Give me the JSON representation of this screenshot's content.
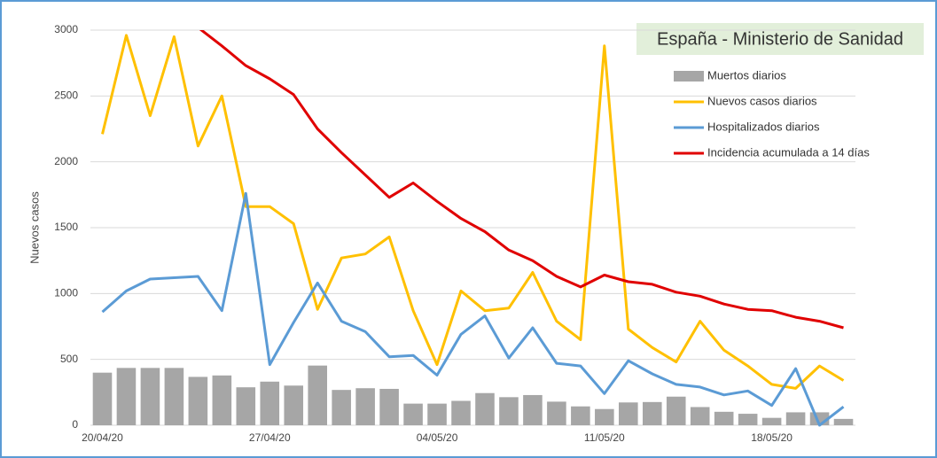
{
  "chart_data": {
    "type": "combo",
    "title": "España - Ministerio de Sanidad",
    "y_label": "Nuevos casos",
    "categories": [
      "20/04/20",
      null,
      null,
      null,
      null,
      null,
      null,
      "27/04/20",
      null,
      null,
      null,
      null,
      null,
      null,
      "04/05/20",
      null,
      null,
      null,
      null,
      null,
      null,
      "11/05/20",
      null,
      null,
      null,
      null,
      null,
      null,
      "18/05/20",
      null,
      null,
      null
    ],
    "ylim": [
      0,
      3000
    ],
    "yticks": [
      0,
      500,
      1000,
      1500,
      2000,
      2500,
      3000
    ],
    "grid": true,
    "legend": "top-right",
    "series": [
      {
        "name": "Muertos diarios",
        "kind": "bar",
        "color": "#a6a6a6",
        "values": [
          399,
          435,
          435,
          435,
          367,
          378,
          288,
          331,
          301,
          453,
          268,
          281,
          276,
          164,
          164,
          185,
          244,
          213,
          229,
          179,
          143,
          123,
          173,
          176,
          217,
          138,
          102,
          87,
          56,
          98,
          98,
          48
        ]
      },
      {
        "name": "Nuevos casos diarios",
        "kind": "line",
        "color": "#ffc000",
        "values": [
          2210,
          2960,
          2350,
          2950,
          2120,
          2500,
          1660,
          1660,
          1530,
          880,
          1270,
          1300,
          1430,
          870,
          460,
          1020,
          870,
          890,
          1160,
          790,
          650,
          2880,
          730,
          590,
          480,
          790,
          570,
          450,
          310,
          280,
          450,
          340
        ]
      },
      {
        "name": "Hospitalizados diarios",
        "kind": "line",
        "color": "#5b9bd5",
        "values": [
          860,
          1020,
          1110,
          1120,
          1130,
          870,
          1760,
          460,
          780,
          1080,
          790,
          710,
          520,
          530,
          380,
          690,
          830,
          510,
          740,
          470,
          450,
          240,
          490,
          390,
          310,
          290,
          230,
          260,
          150,
          430,
          0,
          140
        ]
      },
      {
        "name": "Incidencia acumulada a 14 días",
        "kind": "line",
        "color": "#e00000",
        "values": [
          null,
          null,
          null,
          null,
          3020,
          2880,
          2730,
          2630,
          2510,
          2250,
          2070,
          1900,
          1730,
          1840,
          1700,
          1570,
          1470,
          1330,
          1250,
          1130,
          1050,
          1140,
          1090,
          1070,
          1010,
          980,
          920,
          880,
          870,
          820,
          790,
          740
        ]
      }
    ]
  }
}
